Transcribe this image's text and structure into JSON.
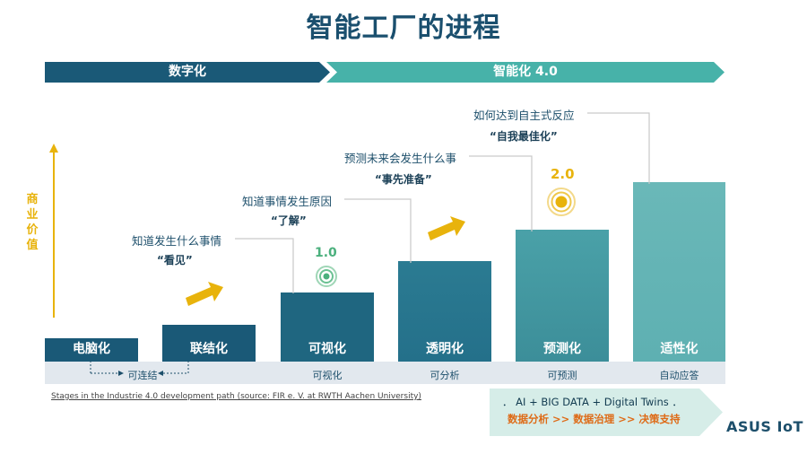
{
  "title": "智能工厂的进程",
  "phases": {
    "digital": "数字化",
    "smart": "智能化 4.0"
  },
  "y_axis_label": "商业价值",
  "bars": [
    {
      "label": "电脑化",
      "sub": ""
    },
    {
      "label": "联结化",
      "sub": ""
    },
    {
      "label": "可视化",
      "sub": "可视化"
    },
    {
      "label": "透明化",
      "sub": "可分析"
    },
    {
      "label": "预测化",
      "sub": "可预测"
    },
    {
      "label": "适性化",
      "sub": "自动应答"
    }
  ],
  "connect_label": "可连结",
  "callouts": [
    {
      "question": "知道发生什么事情",
      "answer": "“看见”"
    },
    {
      "question": "知道事情发生原因",
      "answer": "“了解”"
    },
    {
      "question": "预测未来会发生什么事",
      "answer": "“事先准备”"
    },
    {
      "question": "如何达到自主式反应",
      "answer": "“自我最佳化”"
    }
  ],
  "versions": {
    "v1": "1.0",
    "v2": "2.0"
  },
  "footnote": "Stages in the Industrie 4.0 development path  (source: FIR e. V. at RWTH Aachen University)",
  "ai_box": {
    "line1": "．  AI + BIG DATA + Digital Twins  ．",
    "line2": "数据分析 >> 数据治理 >> 决策支持"
  },
  "logo": "ASUS IoT",
  "colors": {
    "dark_teal": "#1a5977",
    "teal": "#47b2a9",
    "accent_yellow": "#e8b30c",
    "orange": "#de6a16"
  }
}
